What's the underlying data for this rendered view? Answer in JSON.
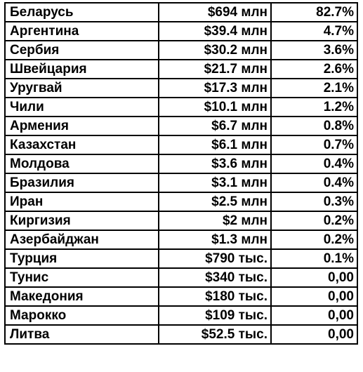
{
  "table": {
    "rows": [
      {
        "country": "Беларусь",
        "amount": "$694 млн",
        "share": "82.7%"
      },
      {
        "country": "Аргентина",
        "amount": "$39.4 млн",
        "share": "4.7%"
      },
      {
        "country": "Сербия",
        "amount": "$30.2 млн",
        "share": "3.6%"
      },
      {
        "country": "Швейцария",
        "amount": "$21.7 млн",
        "share": "2.6%"
      },
      {
        "country": "Уругвай",
        "amount": "$17.3 млн",
        "share": "2.1%"
      },
      {
        "country": "Чили",
        "amount": "$10.1 млн",
        "share": "1.2%"
      },
      {
        "country": "Армения",
        "amount": "$6.7 млн",
        "share": "0.8%"
      },
      {
        "country": "Казахстан",
        "amount": "$6.1 млн",
        "share": "0.7%"
      },
      {
        "country": "Молдова",
        "amount": "$3.6 млн",
        "share": "0.4%"
      },
      {
        "country": "Бразилия",
        "amount": "$3.1 млн",
        "share": "0.4%"
      },
      {
        "country": "Иран",
        "amount": "$2.5 млн",
        "share": "0.3%"
      },
      {
        "country": "Киргизия",
        "amount": "$2 млн",
        "share": "0.2%"
      },
      {
        "country": "Азербайджан",
        "amount": "$1.3 млн",
        "share": "0.2%"
      },
      {
        "country": "Турция",
        "amount": "$790 тыс.",
        "share": "0.1%"
      },
      {
        "country": "Тунис",
        "amount": "$340 тыс.",
        "share": "0,00"
      },
      {
        "country": "Македония",
        "amount": "$180 тыс.",
        "share": "0,00"
      },
      {
        "country": "Марокко",
        "amount": "$109 тыс.",
        "share": "0,00"
      },
      {
        "country": "Литва",
        "amount": "$52.5 тыс.",
        "share": "0,00"
      }
    ]
  }
}
